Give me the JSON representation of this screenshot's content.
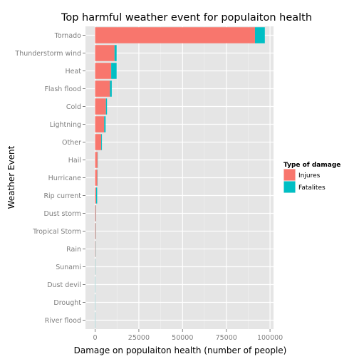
{
  "chart_data": {
    "type": "bar",
    "orientation": "horizontal",
    "stacked": true,
    "title": "Top harmful weather event for populaiton health",
    "xlabel": "Damage on populaiton health (number of people)",
    "ylabel": "Weather Event",
    "xlim": [
      -5500,
      102000
    ],
    "xticks": [
      0,
      25000,
      50000,
      75000,
      100000
    ],
    "xtick_labels": [
      "0",
      "25000",
      "50000",
      "75000",
      "100000"
    ],
    "grid": true,
    "legend_position": "right",
    "legend": {
      "title": "Type of damage",
      "entries": [
        {
          "name": "Injures",
          "color": "#F8766D"
        },
        {
          "name": "Fatalites",
          "color": "#00BFC4"
        }
      ]
    },
    "categories": [
      "Tornado",
      "Thunderstorm wind",
      "Heat",
      "Flash flood",
      "Cold",
      "Lightning",
      "Other",
      "Hail",
      "Hurricane",
      "Rip current",
      "Dust storm",
      "Tropical Storm",
      "Rain",
      "Sunami",
      "Dust devil",
      "Drought",
      "River flood"
    ],
    "series": [
      {
        "name": "Injures",
        "color": "#F8766D",
        "values": [
          91400,
          11100,
          9200,
          8500,
          6200,
          5200,
          3500,
          1400,
          1300,
          600,
          440,
          380,
          280,
          130,
          43,
          19,
          2
        ]
      },
      {
        "name": "Fatalites",
        "color": "#00BFC4",
        "values": [
          5630,
          1200,
          3100,
          1020,
          600,
          820,
          400,
          15,
          135,
          580,
          24,
          66,
          100,
          33,
          2,
          6,
          2
        ]
      }
    ]
  }
}
